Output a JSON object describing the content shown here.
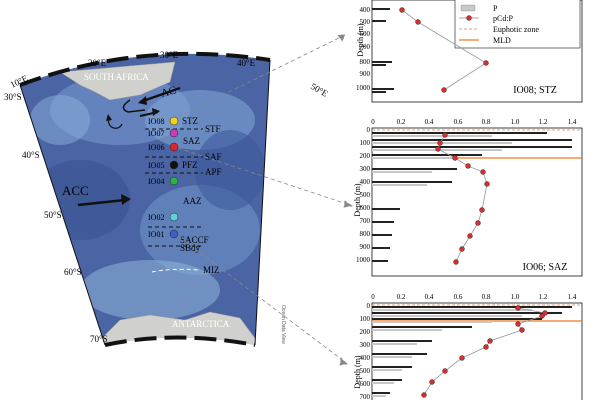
{
  "map": {
    "lon_labels": [
      "10°E",
      "20°E",
      "30°E",
      "40°E",
      "50°E"
    ],
    "lat_labels": [
      "30°S",
      "40°S",
      "50°S",
      "60°S",
      "70°S"
    ],
    "regions": {
      "south_africa": "SOUTH AFRICA",
      "antarctica": "ANTARCTICA"
    },
    "currents": {
      "ac": "AC",
      "acc": "ACC"
    },
    "zones": {
      "saz": "SAZ",
      "aaz": "AAZ"
    },
    "fronts": [
      "STF",
      "SAF",
      "APF",
      "SACCF",
      "SBdy",
      "MIZ"
    ],
    "stations": [
      {
        "id": "IO08",
        "zone": "STZ",
        "color": "#f2d21b"
      },
      {
        "id": "IO07",
        "zone": "",
        "color": "#c23fb8"
      },
      {
        "id": "IO06",
        "zone": "",
        "color": "#d92626"
      },
      {
        "id": "IO05",
        "zone": "PFZ",
        "color": "#111111"
      },
      {
        "id": "IO04",
        "zone": "",
        "color": "#2bb24a"
      },
      {
        "id": "IO02",
        "zone": "",
        "color": "#5fd0d8"
      },
      {
        "id": "IO01",
        "zone": "",
        "color": "#3f5fc8"
      }
    ],
    "credit": "Ocean Data View"
  },
  "legend": {
    "items": [
      "P",
      "pCd:P",
      "Euphotic zone",
      "MLD"
    ]
  },
  "panels": [
    {
      "name": "IO08; STZ",
      "ylabel": "Depth (m)",
      "yticks": [
        "400",
        "500",
        "600",
        "700",
        "800",
        "900",
        "1000"
      ]
    },
    {
      "name": "IO06; SAZ",
      "ylabel": "Depth (m)",
      "xticks": [
        "0",
        "0.2",
        "0.4",
        "0.6",
        "0.8",
        "1.0",
        "1.2",
        "1.4"
      ],
      "yticks": [
        "0",
        "100",
        "200",
        "300",
        "400",
        "500",
        "600",
        "700",
        "800",
        "900",
        "1000"
      ]
    },
    {
      "name": "",
      "ylabel": "Depth (m)",
      "xticks": [
        "0",
        "0.2",
        "0.4",
        "0.6",
        "0.8",
        "1.0",
        "1.2",
        "1.4"
      ],
      "yticks": [
        "0",
        "100",
        "200",
        "300",
        "400",
        "500",
        "600",
        "700"
      ]
    }
  ],
  "colors": {
    "ocean_dark": "#39508f",
    "ocean_light": "#8fb4d8",
    "land": "#d0d0cc",
    "pCdP": "#d03030",
    "mld": "#f07820",
    "euphotic": "#e8a070"
  }
}
